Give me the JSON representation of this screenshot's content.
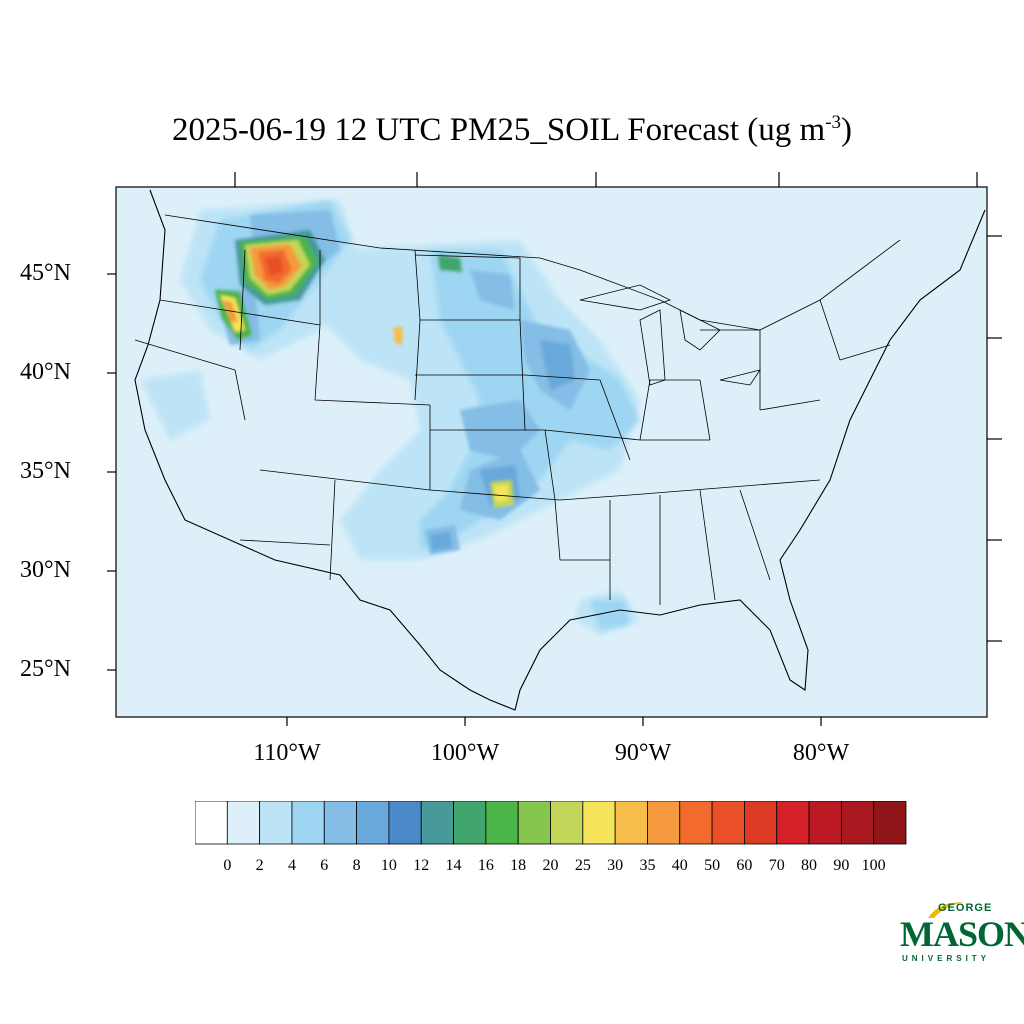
{
  "title": {
    "main": "2025-06-19 12 UTC PM25_SOIL Forecast (ug m",
    "sup": "-3",
    "end": ")"
  },
  "map": {
    "lat_labels": [
      "45°N",
      "40°N",
      "35°N",
      "30°N",
      "25°N"
    ],
    "lon_labels": [
      "110°W",
      "100°W",
      "90°W",
      "80°W"
    ],
    "ocean_color": "#ddf0fa",
    "background_field_color": "#ddf0fa"
  },
  "colorbar": {
    "levels": [
      "0",
      "2",
      "4",
      "6",
      "8",
      "10",
      "12",
      "14",
      "16",
      "18",
      "20",
      "25",
      "30",
      "35",
      "40",
      "50",
      "60",
      "70",
      "80",
      "90",
      "100"
    ],
    "colors": [
      "#ffffff",
      "#ddf0fa",
      "#bde4f6",
      "#9dd5f2",
      "#84bde6",
      "#69a8db",
      "#4a8ac8",
      "#489a9a",
      "#41a56e",
      "#4bb54a",
      "#86c54e",
      "#c4d65a",
      "#f6e55a",
      "#f6bd4b",
      "#f59a3e",
      "#f26a2e",
      "#e95028",
      "#dd3a26",
      "#d42028",
      "#bb1a24",
      "#a8181f",
      "#8f1519"
    ]
  },
  "logo": {
    "top": "GEORGE",
    "main": "MASON",
    "bottom": "UNIVERSITY",
    "color": "#006633",
    "accent": "#f2b900"
  }
}
